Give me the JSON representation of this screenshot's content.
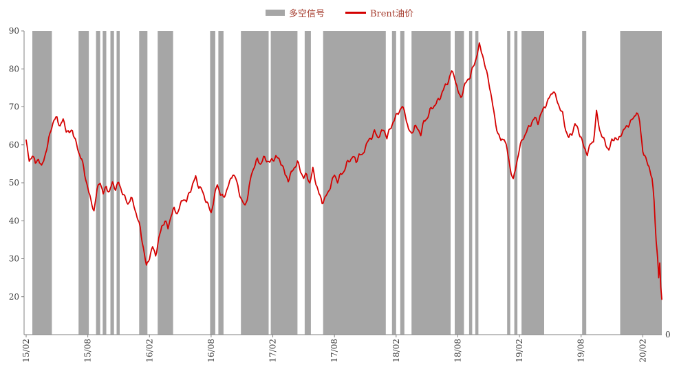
{
  "legend": {
    "signal_label": "多空信号",
    "brent_label": "Brent油价"
  },
  "colors": {
    "signal": "#a6a6a6",
    "line": "#d40000",
    "axis": "#808080",
    "axis_text": "#3d3d3d",
    "legend_text": "#a63d2f",
    "background": "#ffffff"
  },
  "chart_data": {
    "type": "line",
    "title": "",
    "xlabel": "",
    "ylabel": "",
    "grid": false,
    "legend_position": "top-center",
    "x_tick_labels": [
      "15/02",
      "15/08",
      "16/02",
      "16/08",
      "17/02",
      "17/08",
      "18/02",
      "18/08",
      "19/02",
      "19/08",
      "20/02"
    ],
    "x_tick_months": [
      0,
      6,
      12,
      18,
      24,
      30,
      36,
      42,
      48,
      54,
      60
    ],
    "x_range_months": [
      0,
      61.85
    ],
    "ylim": [
      10,
      90
    ],
    "y_ticks": [
      20,
      30,
      40,
      50,
      60,
      70,
      80,
      90
    ],
    "right_axis_bottom_label": "0",
    "series": [
      {
        "name": "Brent油价",
        "type": "line",
        "color": "#d40000",
        "points": [
          [
            0,
            61
          ],
          [
            0.3,
            55.5
          ],
          [
            0.6,
            57.5
          ],
          [
            0.9,
            55
          ],
          [
            1.2,
            56.5
          ],
          [
            1.5,
            54
          ],
          [
            1.8,
            57
          ],
          [
            2.1,
            60
          ],
          [
            2.4,
            64
          ],
          [
            2.7,
            66.5
          ],
          [
            3,
            67
          ],
          [
            3.3,
            65
          ],
          [
            3.6,
            66.5
          ],
          [
            3.9,
            64
          ],
          [
            4.2,
            63
          ],
          [
            4.5,
            64
          ],
          [
            4.8,
            61
          ],
          [
            5.1,
            58
          ],
          [
            5.4,
            56.5
          ],
          [
            5.7,
            52
          ],
          [
            6,
            49
          ],
          [
            6.3,
            45
          ],
          [
            6.6,
            42.8
          ],
          [
            6.9,
            48
          ],
          [
            7.2,
            50.5
          ],
          [
            7.5,
            47
          ],
          [
            7.8,
            49
          ],
          [
            8.1,
            47.5
          ],
          [
            8.4,
            50
          ],
          [
            8.7,
            48.5
          ],
          [
            9,
            50
          ],
          [
            9.3,
            48
          ],
          [
            9.6,
            46
          ],
          [
            9.9,
            44.5
          ],
          [
            10.2,
            46
          ],
          [
            10.5,
            44
          ],
          [
            10.8,
            41
          ],
          [
            11.1,
            38
          ],
          [
            11.4,
            33
          ],
          [
            11.7,
            27.9
          ],
          [
            12,
            30.5
          ],
          [
            12.3,
            33
          ],
          [
            12.6,
            31
          ],
          [
            12.9,
            35
          ],
          [
            13.2,
            38.5
          ],
          [
            13.5,
            40
          ],
          [
            13.8,
            38
          ],
          [
            14.1,
            41.5
          ],
          [
            14.4,
            43
          ],
          [
            14.7,
            42
          ],
          [
            15,
            44
          ],
          [
            15.3,
            46
          ],
          [
            15.6,
            45
          ],
          [
            15.9,
            47.5
          ],
          [
            16.2,
            49.5
          ],
          [
            16.5,
            51.5
          ],
          [
            16.8,
            49
          ],
          [
            17.1,
            48
          ],
          [
            17.4,
            46
          ],
          [
            17.7,
            44
          ],
          [
            18,
            42.2
          ],
          [
            18.3,
            46
          ],
          [
            18.6,
            49.8
          ],
          [
            18.9,
            47
          ],
          [
            19.2,
            46
          ],
          [
            19.5,
            48
          ],
          [
            19.8,
            50
          ],
          [
            20.1,
            52.5
          ],
          [
            20.4,
            51
          ],
          [
            20.7,
            48
          ],
          [
            21,
            45
          ],
          [
            21.3,
            44
          ],
          [
            21.6,
            47
          ],
          [
            21.9,
            52
          ],
          [
            22.2,
            54.5
          ],
          [
            22.5,
            56
          ],
          [
            22.8,
            55
          ],
          [
            23.1,
            56.5
          ],
          [
            23.4,
            56
          ],
          [
            23.7,
            55.5
          ],
          [
            24,
            56
          ],
          [
            24.3,
            57
          ],
          [
            24.6,
            56
          ],
          [
            24.9,
            55
          ],
          [
            25.2,
            52
          ],
          [
            25.5,
            50.8
          ],
          [
            25.8,
            52.5
          ],
          [
            26.1,
            54
          ],
          [
            26.4,
            55.5
          ],
          [
            26.7,
            53
          ],
          [
            27,
            51.5
          ],
          [
            27.3,
            52
          ],
          [
            27.6,
            50
          ],
          [
            27.9,
            53.5
          ],
          [
            28.2,
            50
          ],
          [
            28.5,
            47
          ],
          [
            28.8,
            44.9
          ],
          [
            29.1,
            46
          ],
          [
            29.4,
            47.5
          ],
          [
            29.7,
            50
          ],
          [
            30,
            52
          ],
          [
            30.3,
            50.5
          ],
          [
            30.6,
            52
          ],
          [
            30.9,
            53
          ],
          [
            31.2,
            55
          ],
          [
            31.5,
            56
          ],
          [
            31.8,
            57
          ],
          [
            32.1,
            55.5
          ],
          [
            32.4,
            57.5
          ],
          [
            32.7,
            57
          ],
          [
            33,
            59.5
          ],
          [
            33.3,
            61
          ],
          [
            33.6,
            62
          ],
          [
            33.9,
            63.5
          ],
          [
            34.2,
            62
          ],
          [
            34.5,
            63
          ],
          [
            34.8,
            64
          ],
          [
            35.1,
            62
          ],
          [
            35.4,
            64
          ],
          [
            35.7,
            66
          ],
          [
            36,
            67.5
          ],
          [
            36.3,
            69
          ],
          [
            36.6,
            70
          ],
          [
            36.9,
            68
          ],
          [
            37.2,
            64
          ],
          [
            37.5,
            62.8
          ],
          [
            37.8,
            65
          ],
          [
            38.1,
            64
          ],
          [
            38.4,
            63
          ],
          [
            38.7,
            66
          ],
          [
            39,
            67
          ],
          [
            39.3,
            69
          ],
          [
            39.6,
            70
          ],
          [
            39.9,
            71
          ],
          [
            40.2,
            72
          ],
          [
            40.5,
            74
          ],
          [
            40.8,
            75.5
          ],
          [
            41.1,
            77
          ],
          [
            41.4,
            79.3
          ],
          [
            41.7,
            78
          ],
          [
            42,
            74
          ],
          [
            42.3,
            72.5
          ],
          [
            42.6,
            75
          ],
          [
            42.9,
            77
          ],
          [
            43.2,
            78
          ],
          [
            43.5,
            80.5
          ],
          [
            43.8,
            83
          ],
          [
            44.1,
            86.2
          ],
          [
            44.4,
            84
          ],
          [
            44.7,
            80
          ],
          [
            45,
            77
          ],
          [
            45.3,
            72
          ],
          [
            45.6,
            67
          ],
          [
            45.9,
            63
          ],
          [
            46.2,
            61
          ],
          [
            46.5,
            62
          ],
          [
            46.8,
            58.5
          ],
          [
            47.1,
            54
          ],
          [
            47.4,
            50.5
          ],
          [
            47.7,
            55
          ],
          [
            48,
            59
          ],
          [
            48.3,
            61.5
          ],
          [
            48.6,
            63
          ],
          [
            48.9,
            64.5
          ],
          [
            49.2,
            66
          ],
          [
            49.5,
            67
          ],
          [
            49.8,
            66
          ],
          [
            50.1,
            68
          ],
          [
            50.4,
            70
          ],
          [
            50.7,
            71
          ],
          [
            51,
            73
          ],
          [
            51.3,
            74.3
          ],
          [
            51.6,
            72
          ],
          [
            51.9,
            70
          ],
          [
            52.2,
            68
          ],
          [
            52.5,
            64
          ],
          [
            52.8,
            61.8
          ],
          [
            53.1,
            63
          ],
          [
            53.4,
            65.5
          ],
          [
            53.7,
            64
          ],
          [
            54,
            62
          ],
          [
            54.3,
            59
          ],
          [
            54.6,
            57.8
          ],
          [
            54.9,
            60
          ],
          [
            55.2,
            61
          ],
          [
            55.5,
            68.5
          ],
          [
            55.8,
            64
          ],
          [
            56.1,
            62
          ],
          [
            56.4,
            60
          ],
          [
            56.7,
            58.8
          ],
          [
            57,
            61
          ],
          [
            57.3,
            62
          ],
          [
            57.6,
            61
          ],
          [
            57.9,
            63
          ],
          [
            58.2,
            64
          ],
          [
            58.5,
            65
          ],
          [
            58.8,
            66
          ],
          [
            59.1,
            67
          ],
          [
            59.4,
            68.8
          ],
          [
            59.7,
            66
          ],
          [
            60,
            58.5
          ],
          [
            60.3,
            56
          ],
          [
            60.6,
            54.5
          ],
          [
            60.9,
            51
          ],
          [
            61.1,
            45
          ],
          [
            61.3,
            35
          ],
          [
            61.45,
            30
          ],
          [
            61.55,
            25
          ],
          [
            61.65,
            28.5
          ],
          [
            61.75,
            22
          ],
          [
            61.85,
            19.3
          ]
        ]
      },
      {
        "name": "多空信号",
        "type": "bands",
        "color": "#a6a6a6",
        "intervals": [
          [
            0.6,
            2.5
          ],
          [
            5.1,
            6.1
          ],
          [
            6.8,
            7.2
          ],
          [
            7.45,
            7.8
          ],
          [
            8.2,
            8.55
          ],
          [
            8.8,
            9.1
          ],
          [
            11.0,
            11.8
          ],
          [
            12.8,
            14.3
          ],
          [
            17.9,
            18.4
          ],
          [
            18.7,
            19.2
          ],
          [
            20.9,
            23.6
          ],
          [
            23.8,
            26.4
          ],
          [
            27.1,
            27.7
          ],
          [
            28.9,
            35.0
          ],
          [
            35.6,
            36.0
          ],
          [
            36.4,
            36.8
          ],
          [
            37.5,
            41.3
          ],
          [
            41.7,
            42.6
          ],
          [
            43.1,
            43.4
          ],
          [
            43.7,
            44.0
          ],
          [
            46.8,
            47.1
          ],
          [
            47.5,
            47.8
          ],
          [
            48.2,
            50.4
          ],
          [
            54.1,
            54.5
          ],
          [
            57.8,
            61.85
          ]
        ]
      }
    ]
  }
}
